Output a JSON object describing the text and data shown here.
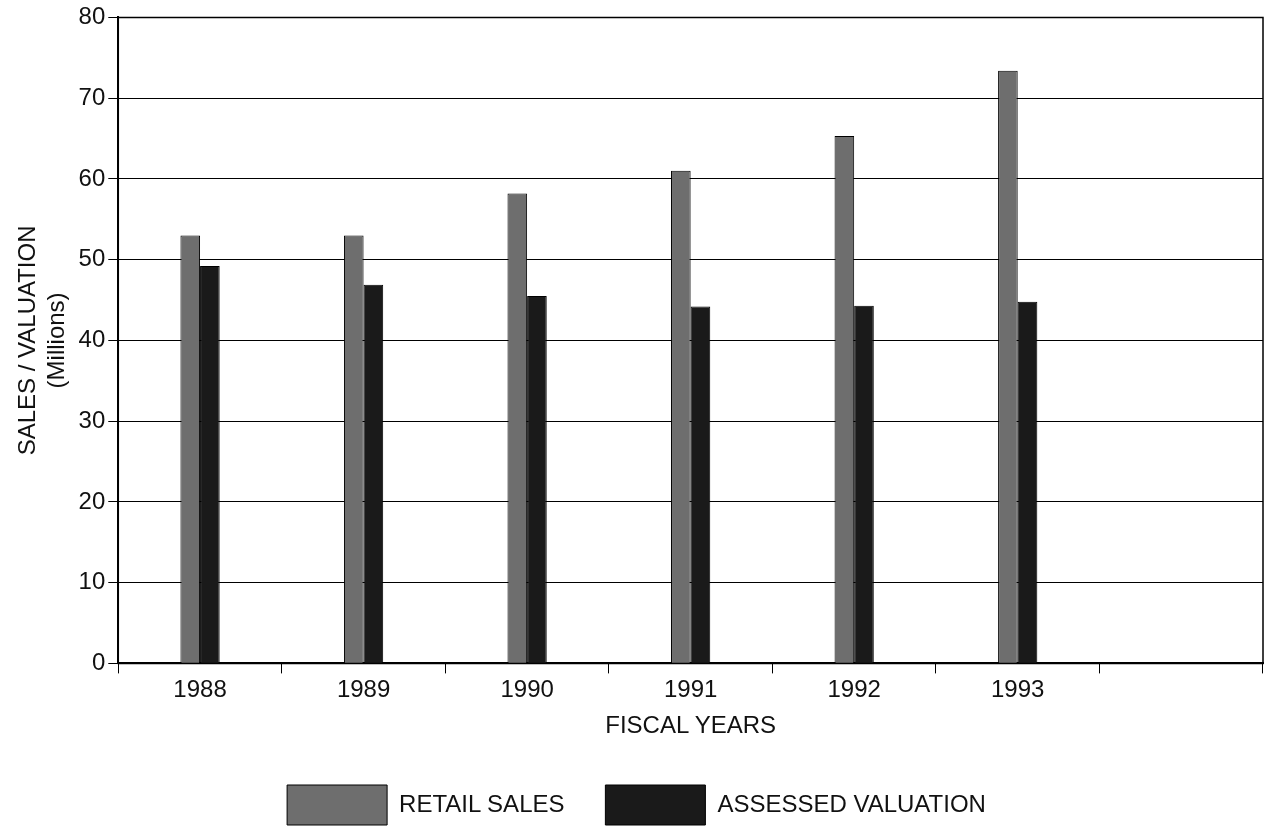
{
  "chart_data": {
    "type": "bar",
    "xlabel": "FISCAL YEARS",
    "ylabel": "SALES / VALUATION\n(Millions)",
    "categories": [
      "1988",
      "1989",
      "1990",
      "1991",
      "1992",
      "1993",
      null
    ],
    "series": [
      {
        "name": "RETAIL SALES",
        "color": "#6e6e6e",
        "values": [
          53,
          53,
          58.2,
          61,
          65.3,
          73.4,
          null
        ]
      },
      {
        "name": "ASSESSED VALUATION",
        "color": "#1a1a1a",
        "values": [
          49.2,
          46.9,
          45.5,
          44.2,
          44.3,
          44.8,
          null
        ]
      }
    ],
    "ylim": [
      0,
      80
    ],
    "yticks": [
      0,
      10,
      20,
      30,
      40,
      50,
      60,
      70,
      80
    ],
    "grid": "y",
    "legend": "bottom"
  }
}
